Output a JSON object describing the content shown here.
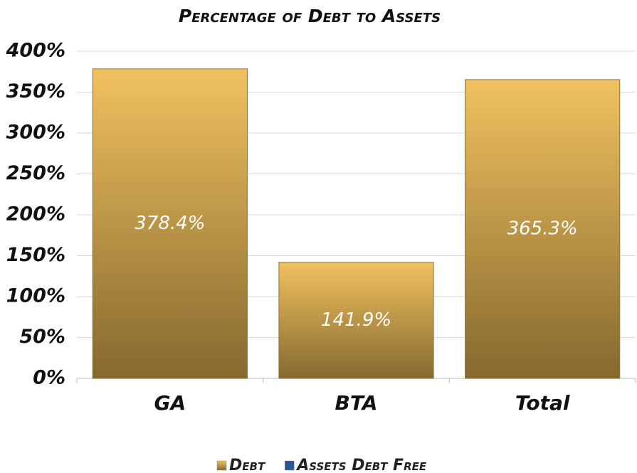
{
  "chart_data": {
    "type": "stacked_bar",
    "title": "Percentage of Debt to Assets",
    "categories": [
      "GA",
      "BTA",
      "Total"
    ],
    "series": [
      {
        "name": "Debt",
        "color": "#d9ae55",
        "values": [
          378.4,
          141.9,
          365.3
        ],
        "value_labels": [
          "378.4%",
          "141.9%",
          "365.3%"
        ]
      },
      {
        "name": "Assets Debt Free",
        "color": "#2f5597",
        "values": [
          0,
          0,
          0
        ]
      }
    ],
    "ylim": [
      0,
      400
    ],
    "yticks": [
      {
        "value": 0,
        "label": "0%"
      },
      {
        "value": 50,
        "label": "50%"
      },
      {
        "value": 100,
        "label": "100%"
      },
      {
        "value": 150,
        "label": "150%"
      },
      {
        "value": 200,
        "label": "200%"
      },
      {
        "value": 250,
        "label": "250%"
      },
      {
        "value": 300,
        "label": "300%"
      },
      {
        "value": 350,
        "label": "350%"
      },
      {
        "value": 400,
        "label": "400%"
      }
    ],
    "grid": true,
    "legend": "bottom"
  }
}
